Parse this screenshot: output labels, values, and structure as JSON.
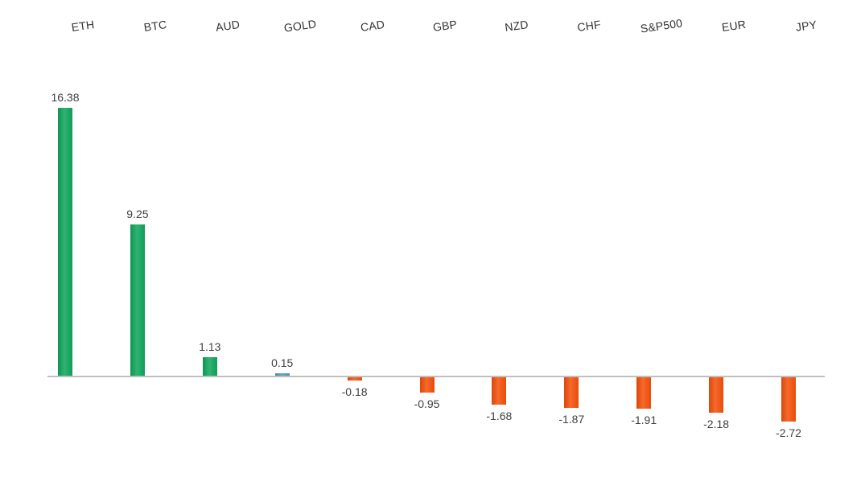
{
  "chart_data": {
    "type": "bar",
    "title": "",
    "xlabel": "",
    "ylabel": "",
    "categories": [
      "ETH",
      "BTC",
      "AUD",
      "GOLD",
      "CAD",
      "GBP",
      "NZD",
      "CHF",
      "S&P500",
      "EUR",
      "JPY"
    ],
    "values": [
      16.38,
      9.25,
      1.13,
      0.15,
      -0.18,
      -0.95,
      -1.68,
      -1.87,
      -1.91,
      -2.18,
      -2.72
    ],
    "value_labels": [
      "16.38",
      "9.25",
      "1.13",
      "0.15",
      "-0.18",
      "-0.95",
      "-1.68",
      "-1.87",
      "-1.91",
      "-2.18",
      "-2.72"
    ],
    "bar_colors": [
      "#0EA65C",
      "#0EA65C",
      "#0EA65C",
      "#4E9ABA",
      "#F4500A",
      "#F4500A",
      "#F4500A",
      "#F4500A",
      "#F4500A",
      "#F4500A",
      "#F4500A"
    ],
    "ylim": [
      -4,
      17
    ],
    "baseline": 0,
    "grid": false,
    "legend": false,
    "category_labels_position": "top",
    "category_label_rotation_deg": -8,
    "axis_line_color": "#BFBFBF",
    "category_label_color": "#333333",
    "value_label_color": "#404040"
  }
}
